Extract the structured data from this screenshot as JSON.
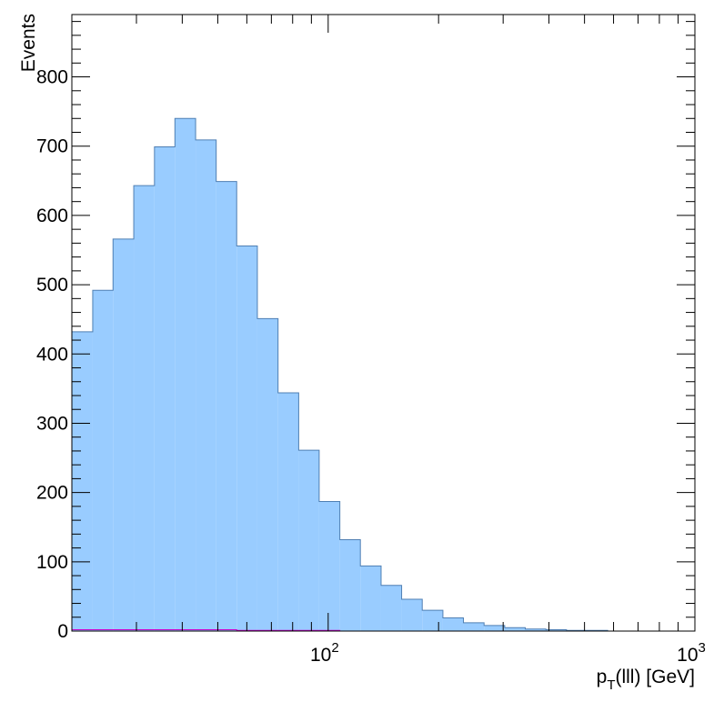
{
  "chart_data": {
    "type": "bar",
    "histogram": true,
    "title": "",
    "xlabel": "p",
    "xlabel_sub": "T",
    "xlabel_rest": "(lll) [GeV]",
    "ylabel": "Events",
    "x_scale": "log",
    "xlim": [
      20,
      1000
    ],
    "ylim": [
      0,
      890
    ],
    "grid": false,
    "y_ticks": [
      {
        "value": 0,
        "label": "0"
      },
      {
        "value": 100,
        "label": "100"
      },
      {
        "value": 200,
        "label": "200"
      },
      {
        "value": 300,
        "label": "300"
      },
      {
        "value": 400,
        "label": "400"
      },
      {
        "value": 500,
        "label": "500"
      },
      {
        "value": 600,
        "label": "600"
      },
      {
        "value": 700,
        "label": "700"
      },
      {
        "value": 800,
        "label": "800"
      }
    ],
    "x_major_ticks": [
      {
        "value": 100,
        "base": "10",
        "exp": "2"
      },
      {
        "value": 1000,
        "base": "10",
        "exp": "3"
      }
    ],
    "x_minor_ticks": [
      30,
      40,
      50,
      60,
      70,
      80,
      90,
      200,
      300,
      400,
      500,
      600,
      700,
      800,
      900
    ],
    "bin_edges": [
      20.0,
      22.8,
      25.9,
      29.5,
      33.6,
      38.2,
      43.5,
      49.5,
      56.3,
      64.1,
      73.0,
      83.1,
      94.5,
      107.6,
      122.4,
      139.4,
      158.6,
      180.5,
      205.5,
      233.8,
      266.1,
      302.9,
      344.7,
      392.3,
      446.5,
      508.2,
      578.4,
      658.3,
      749.3,
      852.7,
      970.5
    ],
    "series": [
      {
        "values": [
          432,
          492,
          566,
          643,
          699,
          740,
          709,
          649,
          556,
          451,
          344,
          261,
          187,
          132,
          94,
          66,
          46,
          30,
          19,
          12,
          8,
          5,
          3,
          2,
          1,
          1,
          0,
          0,
          0,
          0
        ],
        "fill": "#99ccff",
        "stroke": "#4f7fb3"
      },
      {
        "values": [
          2,
          2,
          2,
          2,
          2,
          2,
          2,
          2,
          1,
          1,
          1,
          1,
          1,
          0,
          0,
          0,
          0,
          0,
          0,
          0,
          0,
          0,
          0,
          0,
          0,
          0,
          0,
          0,
          0,
          0
        ],
        "fill": "none",
        "stroke": "#cc00cc"
      }
    ]
  }
}
